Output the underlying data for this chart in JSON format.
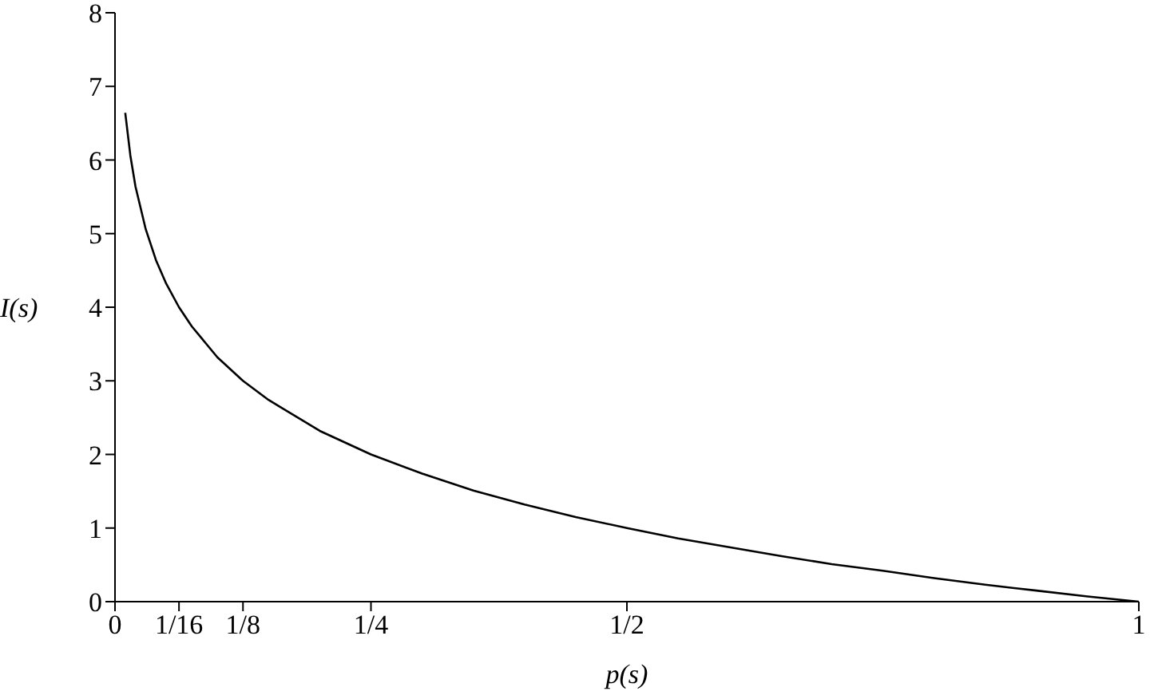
{
  "chart_data": {
    "type": "line",
    "xlabel": "p(s)",
    "ylabel": "I(s)",
    "xlim": [
      0,
      1
    ],
    "xticks": [
      0,
      {
        "value": 0.0625,
        "label": "1/16"
      },
      {
        "value": 0.125,
        "label": "1/8"
      },
      {
        "value": 0.25,
        "label": "1/4"
      },
      {
        "value": 0.5,
        "label": "1/2"
      },
      1
    ],
    "ylim": [
      0,
      8
    ],
    "yticks": [
      0,
      1,
      2,
      3,
      4,
      5,
      6,
      7,
      8
    ],
    "grid": false,
    "legend": false,
    "marker": "none",
    "line_style": "solid",
    "series": [
      {
        "color": "#000000",
        "x": [
          0.01,
          0.015,
          0.02,
          0.03,
          0.04,
          0.05,
          0.0625,
          0.075,
          0.1,
          0.125,
          0.15,
          0.2,
          0.25,
          0.3,
          0.35,
          0.4,
          0.45,
          0.5,
          0.55,
          0.6,
          0.65,
          0.7,
          0.75,
          0.8,
          0.85,
          0.9,
          0.95,
          1
        ],
        "values": [
          6.64,
          6.06,
          5.64,
          5.06,
          4.64,
          4.32,
          4,
          3.74,
          3.32,
          3,
          2.74,
          2.32,
          2,
          1.74,
          1.51,
          1.32,
          1.15,
          1,
          0.86,
          0.74,
          0.62,
          0.51,
          0.42,
          0.32,
          0.23,
          0.15,
          0.07,
          0
        ]
      }
    ]
  }
}
